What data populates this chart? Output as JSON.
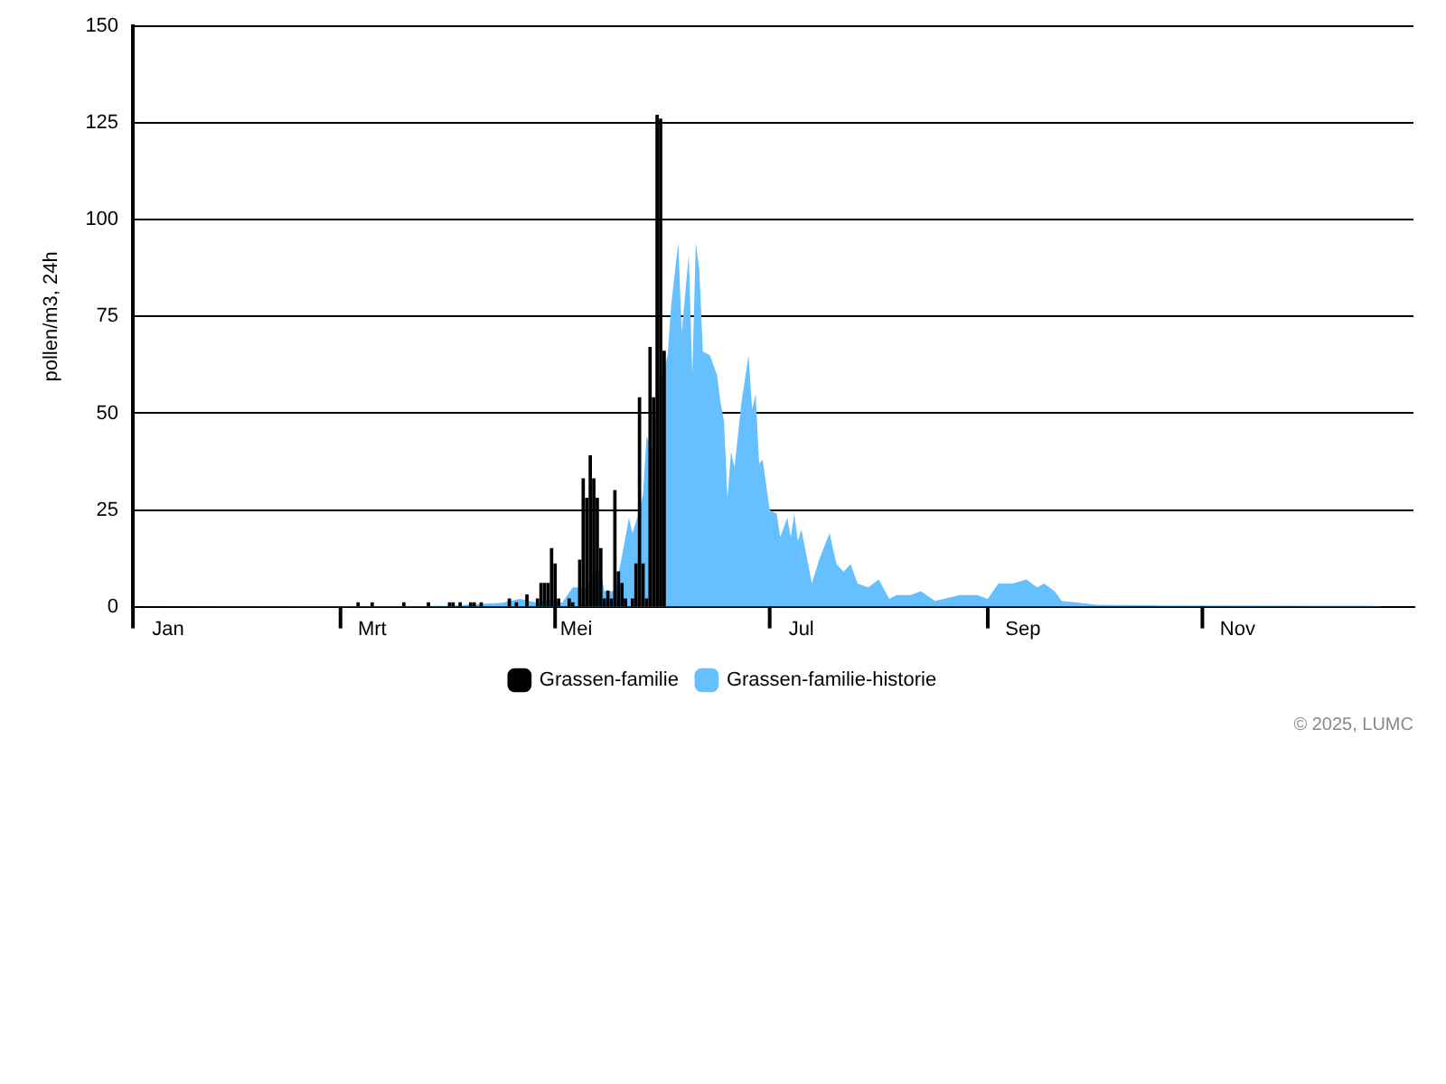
{
  "chart_data": {
    "type": "bar",
    "ylabel": "pollen/m3, 24h",
    "ylim": [
      0,
      150
    ],
    "yticks": [
      0,
      25,
      50,
      75,
      100,
      125,
      150
    ],
    "xlim": [
      "--01-01",
      "--12-31"
    ],
    "xticks": [
      {
        "value": "--01-01",
        "label": null
      },
      {
        "value": "--01-11",
        "label": "Jan"
      },
      {
        "value": "--03-01",
        "label": null
      },
      {
        "value": "--03-10",
        "label": "Mrt"
      },
      {
        "value": "--05-01",
        "label": null
      },
      {
        "value": "--05-07",
        "label": "Mei"
      },
      {
        "value": "--07-01",
        "label": null
      },
      {
        "value": "--07-10",
        "label": "Jul"
      },
      {
        "value": "--09-01",
        "label": null
      },
      {
        "value": "--09-11",
        "label": "Sep"
      },
      {
        "value": "--11-01",
        "label": null
      },
      {
        "value": "--11-11",
        "label": "Nov"
      }
    ],
    "grid": "y",
    "legend": "bottom",
    "annotations": [
      "© 2025, LUMC"
    ],
    "series": [
      {
        "name": "Grassen-familie",
        "color": "#000000",
        "x": [
          "--03-06",
          "--03-10",
          "--03-19",
          "--03-26",
          "--04-01",
          "--04-02",
          "--04-04",
          "--04-07",
          "--04-08",
          "--04-10",
          "--04-18",
          "--04-20",
          "--04-23",
          "--04-26",
          "--04-27",
          "--04-28",
          "--04-29",
          "--04-30",
          "--05-01",
          "--05-02",
          "--05-05",
          "--05-06",
          "--05-08",
          "--05-09",
          "--05-10",
          "--05-11",
          "--05-12",
          "--05-13",
          "--05-14",
          "--05-15",
          "--05-16",
          "--05-17",
          "--05-18",
          "--05-19",
          "--05-20",
          "--05-21",
          "--05-23",
          "--05-24",
          "--05-25",
          "--05-26",
          "--05-27",
          "--05-28",
          "--05-29",
          "--05-30",
          "--05-31",
          "--06-01"
        ],
        "values": [
          1,
          1,
          1,
          1,
          1,
          1,
          1,
          1,
          1,
          1,
          2,
          1,
          3,
          2,
          6,
          6,
          6,
          15,
          11,
          2,
          2,
          1,
          12,
          33,
          28,
          39,
          33,
          28,
          15,
          2,
          4,
          2,
          30,
          9,
          6,
          2,
          2,
          11,
          54,
          11,
          2,
          67,
          54,
          127,
          126,
          66
        ]
      },
      {
        "name": "Grassen-familie-historie",
        "type": "area",
        "color": "#66bfff",
        "x": [
          "--01-01",
          "--04-01",
          "--04-16",
          "--04-21",
          "--04-26",
          "--04-29",
          "--05-03",
          "--05-06",
          "--05-10",
          "--05-12",
          "--05-14",
          "--05-15",
          "--05-18",
          "--05-20",
          "--05-22",
          "--05-23",
          "--05-25",
          "--05-26",
          "--05-27",
          "--05-29",
          "--05-30",
          "--06-02",
          "--06-03",
          "--06-05",
          "--06-06",
          "--06-08",
          "--06-09",
          "--06-10",
          "--06-11",
          "--06-12",
          "--06-14",
          "--06-16",
          "--06-17",
          "--06-18",
          "--06-19",
          "--06-20",
          "--06-21",
          "--06-23",
          "--06-25",
          "--06-26",
          "--06-27",
          "--06-28",
          "--06-29",
          "--07-01",
          "--07-03",
          "--07-04",
          "--07-06",
          "--07-07",
          "--07-08",
          "--07-09",
          "--07-10",
          "--07-13",
          "--07-15",
          "--07-18",
          "--07-20",
          "--07-22",
          "--07-24",
          "--07-26",
          "--07-29",
          "--08-01",
          "--08-04",
          "--08-06",
          "--08-10",
          "--08-13",
          "--08-17",
          "--08-24",
          "--08-29",
          "--09-01",
          "--09-04",
          "--09-08",
          "--09-12",
          "--09-15",
          "--09-17",
          "--09-20",
          "--09-22",
          "--09-27",
          "--10-02",
          "--10-14",
          "--10-20",
          "--12-21",
          "--12-22"
        ],
        "values": [
          0,
          0.2,
          1,
          2,
          1,
          2,
          1,
          5,
          5,
          9,
          9,
          4,
          4,
          13,
          23,
          19,
          25,
          29,
          44,
          40,
          55,
          65,
          78,
          94,
          71,
          91,
          60,
          94,
          87,
          66,
          65,
          60,
          53,
          48,
          28,
          40,
          36,
          53,
          65,
          51,
          55,
          37,
          38,
          25,
          24,
          18,
          23,
          18,
          24,
          17,
          20,
          6,
          12,
          19,
          11,
          9,
          11,
          6,
          5,
          7,
          2,
          3,
          3,
          4,
          1.5,
          3,
          3,
          2,
          6,
          6,
          7,
          5,
          6,
          4,
          1.5,
          1,
          0.5,
          0.4,
          0.3,
          0.2,
          0
        ]
      }
    ]
  }
}
